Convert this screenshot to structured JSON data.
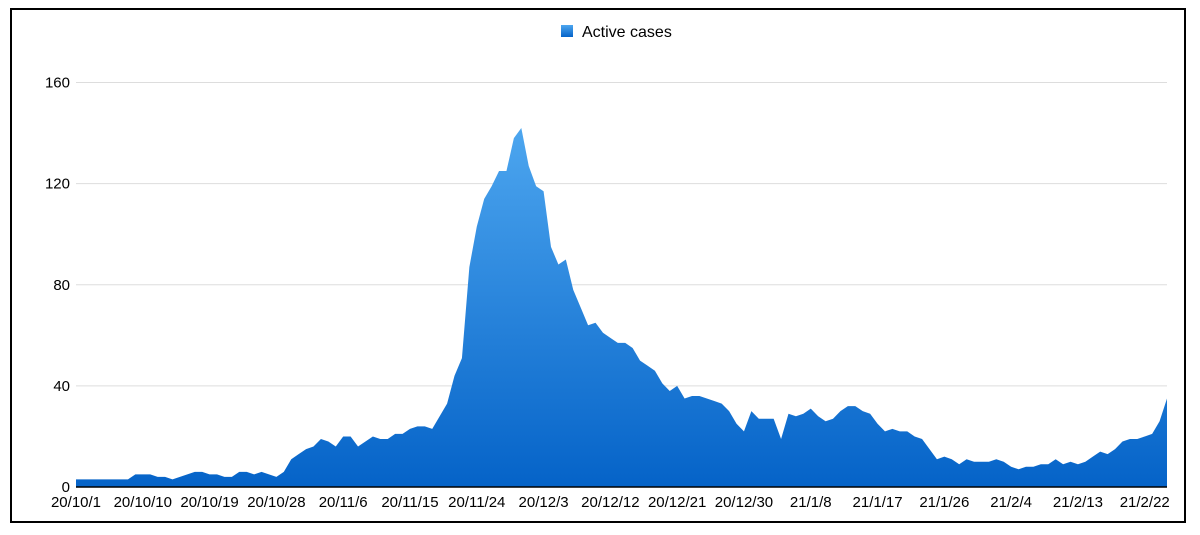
{
  "chart_data": {
    "type": "area",
    "title": "",
    "xlabel": "",
    "ylabel": "",
    "legend": {
      "label": "Active cases",
      "position": "top-center"
    },
    "ylim": [
      0,
      180
    ],
    "yticks": [
      0,
      40,
      80,
      120,
      160
    ],
    "grid": true,
    "colors": {
      "fill_top": "#4da6ef",
      "fill_bottom": "#0563c8",
      "grid": "#dddddd",
      "legend_swatch": "#1a7ce0"
    },
    "xtick_labels": [
      "20/10/1",
      "20/10/10",
      "20/10/19",
      "20/10/28",
      "20/11/6",
      "20/11/15",
      "20/11/24",
      "20/12/3",
      "20/12/12",
      "20/12/21",
      "20/12/30",
      "21/1/8",
      "21/1/17",
      "21/1/26",
      "21/2/4",
      "21/2/13",
      "21/2/22"
    ],
    "xtick_step_days": 9,
    "values": [
      3,
      3,
      3,
      3,
      3,
      3,
      3,
      3,
      5,
      5,
      5,
      4,
      4,
      3,
      4,
      5,
      6,
      6,
      5,
      5,
      4,
      4,
      6,
      6,
      5,
      6,
      5,
      4,
      6,
      11,
      13,
      15,
      16,
      19,
      18,
      16,
      20,
      20,
      16,
      18,
      20,
      19,
      19,
      21,
      21,
      23,
      24,
      24,
      23,
      28,
      33,
      44,
      51,
      87,
      103,
      114,
      119,
      125,
      125,
      138,
      142,
      127,
      119,
      117,
      95,
      88,
      90,
      78,
      71,
      64,
      65,
      61,
      59,
      57,
      57,
      55,
      50,
      48,
      46,
      41,
      38,
      40,
      35,
      36,
      36,
      35,
      34,
      33,
      30,
      25,
      22,
      30,
      27,
      27,
      27,
      19,
      29,
      28,
      29,
      31,
      28,
      26,
      27,
      30,
      32,
      32,
      30,
      29,
      25,
      22,
      23,
      22,
      22,
      20,
      19,
      15,
      11,
      12,
      11,
      9,
      11,
      10,
      10,
      10,
      11,
      10,
      8,
      7,
      8,
      8,
      9,
      9,
      11,
      9,
      10,
      9,
      10,
      12,
      14,
      13,
      15,
      18,
      19,
      19,
      20,
      21,
      26,
      35
    ]
  }
}
